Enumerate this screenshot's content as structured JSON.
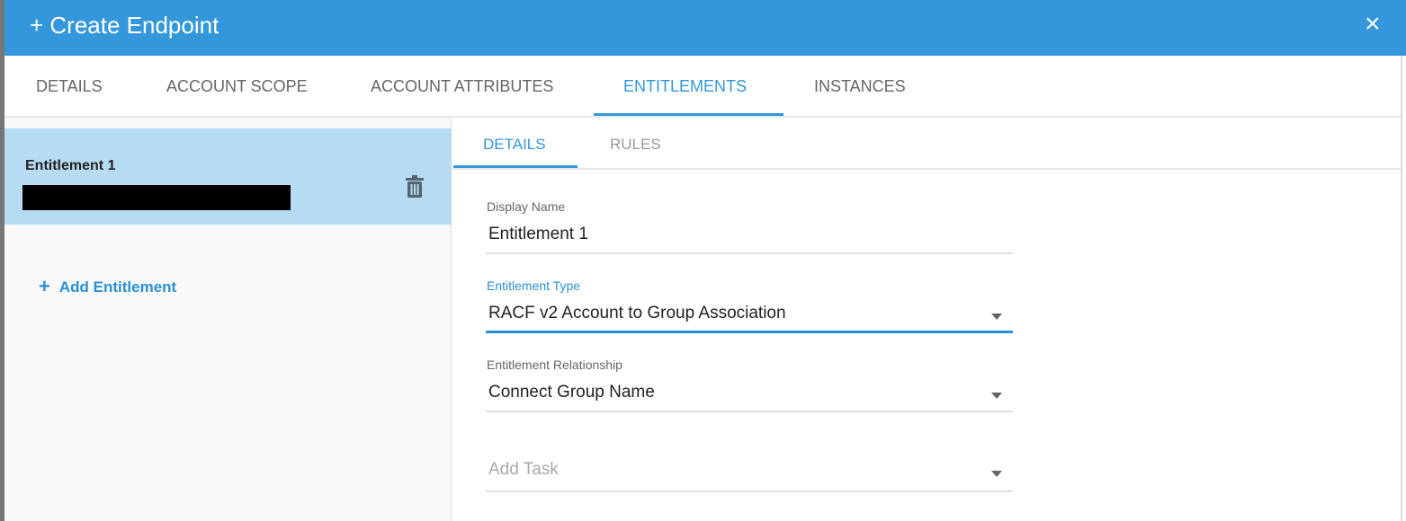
{
  "header": {
    "title": "+ Create Endpoint",
    "close_icon": "×"
  },
  "tabs": [
    {
      "label": "DETAILS"
    },
    {
      "label": "ACCOUNT SCOPE"
    },
    {
      "label": "ACCOUNT ATTRIBUTES"
    },
    {
      "label": "ENTITLEMENTS",
      "active": true
    },
    {
      "label": "INSTANCES"
    }
  ],
  "entitlements": {
    "items": [
      {
        "name": "Entitlement 1",
        "selected": true
      }
    ],
    "add_label": "Add Entitlement",
    "add_icon": "+"
  },
  "subtabs": [
    {
      "label": "DETAILS",
      "active": true
    },
    {
      "label": "RULES"
    }
  ],
  "form": {
    "display_name": {
      "label": "Display Name",
      "value": "Entitlement 1"
    },
    "entitlement_type": {
      "label": "Entitlement Type",
      "value": "RACF v2 Account to Group Association"
    },
    "entitlement_relationship": {
      "label": "Entitlement Relationship",
      "value": "Connect Group Name"
    },
    "add_task": {
      "placeholder": "Add Task"
    }
  },
  "colors": {
    "accent": "#3497db",
    "selected_bg": "#b6dbf2"
  }
}
